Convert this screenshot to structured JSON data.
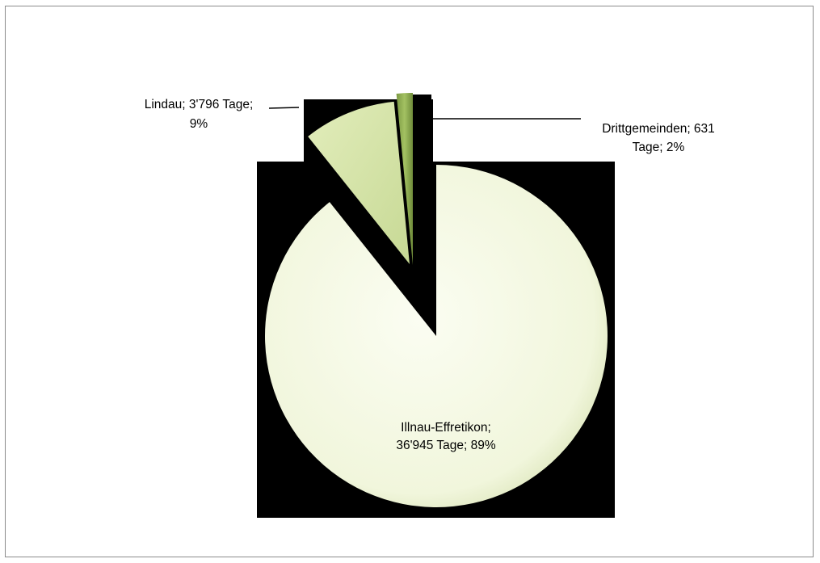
{
  "chart_data": {
    "type": "pie",
    "title": "",
    "unit": "Tage",
    "slices": [
      {
        "name": "Illnau-Effretikon",
        "value": 36945,
        "percent": 89,
        "color": "#f6f9e6",
        "label_lines": [
          "Illnau-Effretikon;",
          "36'945 Tage; 89%"
        ]
      },
      {
        "name": "Lindau",
        "value": 3796,
        "percent": 9,
        "color": "#d5e3a8",
        "label_lines": [
          "Lindau; 3'796 Tage;",
          "9%"
        ]
      },
      {
        "name": "Drittgemeinden",
        "value": 631,
        "percent": 2,
        "color": "#8bab4e",
        "label_lines": [
          "Drittgemeinden; 631",
          "Tage; 2%"
        ]
      }
    ],
    "legend": "none",
    "grid": false
  }
}
